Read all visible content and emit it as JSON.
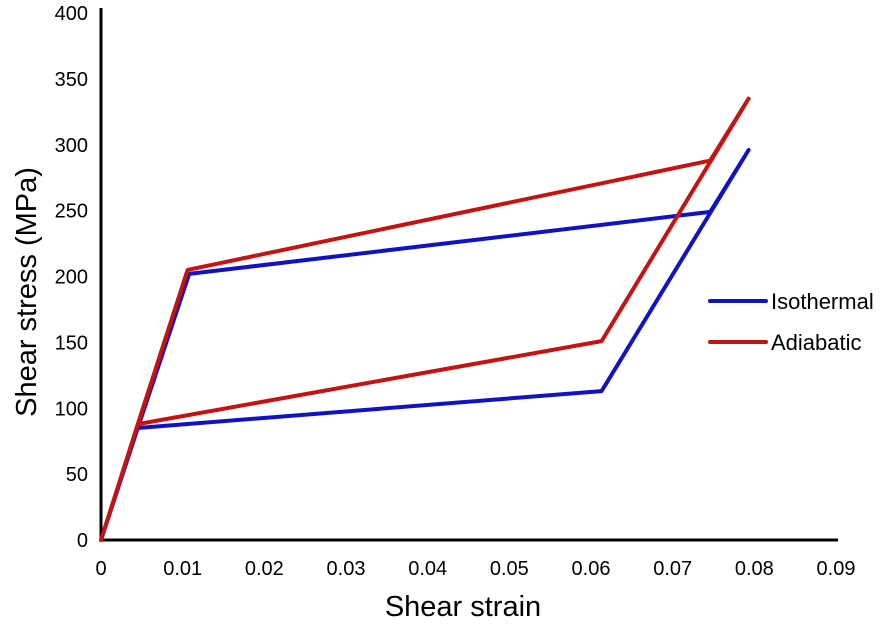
{
  "figure": {
    "background": "#ffffff",
    "axis_color": "#000000",
    "text_color": "#000000"
  },
  "chart_data": {
    "type": "line",
    "title": "",
    "xlabel": "Shear strain",
    "ylabel": "Shear stress (MPa)",
    "xlim": [
      0,
      0.09
    ],
    "ylim": [
      0,
      400
    ],
    "grid": false,
    "legend_position": "right-middle-inside",
    "x_tick_values": [
      0,
      0.01,
      0.02,
      0.03,
      0.04,
      0.05,
      0.06,
      0.07,
      0.08,
      0.09
    ],
    "x_tick_labels": [
      "0",
      "0.01",
      "0.02",
      "0.03",
      "0.04",
      "0.05",
      "0.06",
      "0.07",
      "0.08",
      "0.09"
    ],
    "y_tick_values": [
      0,
      50,
      100,
      150,
      200,
      250,
      300,
      350,
      400
    ],
    "y_tick_labels": [
      "0",
      "50",
      "100",
      "150",
      "200",
      "250",
      "300",
      "350",
      "400"
    ],
    "series": [
      {
        "name": "Isothermal",
        "color": "#1111c8",
        "description": "superelastic loading-unloading hysteresis loop",
        "points": [
          [
            0,
            0
          ],
          [
            0.0045,
            85
          ],
          [
            0.0108,
            202
          ],
          [
            0.0746,
            249
          ],
          [
            0.0793,
            296
          ],
          [
            0.0613,
            113
          ],
          [
            0.0045,
            85
          ],
          [
            0,
            0
          ]
        ]
      },
      {
        "name": "Adiabatic",
        "color": "#c81111",
        "description": "superelastic loading-unloading hysteresis loop",
        "points": [
          [
            0,
            0
          ],
          [
            0.0045,
            88
          ],
          [
            0.0106,
            205
          ],
          [
            0.0746,
            288
          ],
          [
            0.0793,
            335
          ],
          [
            0.0613,
            151
          ],
          [
            0.0045,
            88
          ],
          [
            0,
            0
          ]
        ]
      }
    ]
  }
}
